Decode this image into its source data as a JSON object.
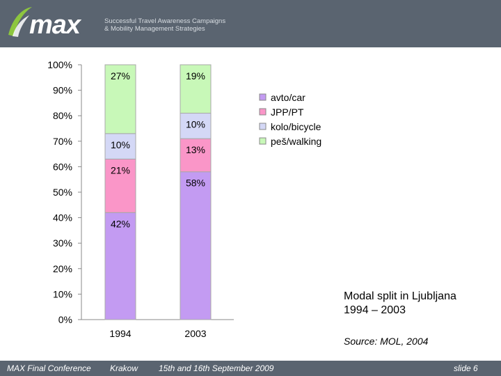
{
  "header": {
    "logo": "max",
    "tagline_line1": "Successful Travel Awareness Campaigns",
    "tagline_line2": "& Mobility Management Strategies"
  },
  "chart_data": {
    "type": "bar",
    "stacked": true,
    "percent": true,
    "categories": [
      "1994",
      "2003"
    ],
    "series": [
      {
        "name": "avto/car",
        "values": [
          42,
          58
        ],
        "labels": [
          "42%",
          "58%"
        ],
        "color": "#c39bf2"
      },
      {
        "name": "JPP/PT",
        "values": [
          21,
          13
        ],
        "labels": [
          "21%",
          "13%"
        ],
        "color": "#fa96c8"
      },
      {
        "name": "kolo/bicycle",
        "values": [
          10,
          10
        ],
        "labels": [
          "10%",
          "10%"
        ],
        "color": "#d4d8f6"
      },
      {
        "name": "peš/walking",
        "values": [
          27,
          19
        ],
        "labels": [
          "27%",
          "19%"
        ],
        "color": "#c8f8b8"
      }
    ],
    "yticks": [
      "0%",
      "10%",
      "20%",
      "30%",
      "40%",
      "50%",
      "60%",
      "70%",
      "80%",
      "90%",
      "100%"
    ],
    "ylim": [
      0,
      100
    ],
    "legend": "right",
    "grid": false
  },
  "caption": {
    "line1": "Modal split in Ljubljana",
    "line2": "1994 – 2003"
  },
  "source": "Source: MOL, 2004",
  "footer": {
    "conference": "MAX Final Conference",
    "city": "Krakow",
    "date": "15th and 16th September 2009",
    "slide": "slide 6"
  }
}
